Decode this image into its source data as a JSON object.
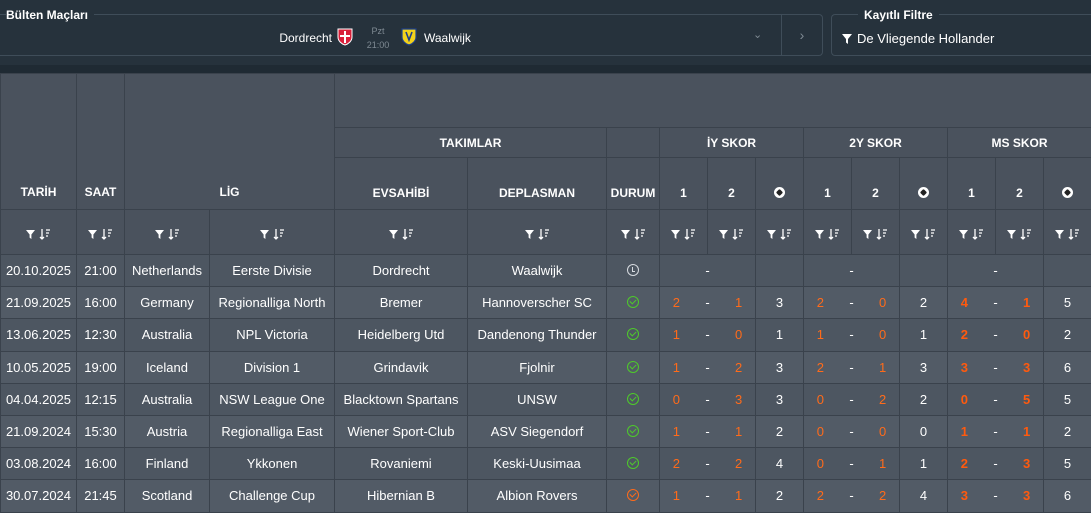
{
  "header": {
    "bulten_label": "Bülten Maçları",
    "filtre_label": "Kayıtlı Filtre",
    "match": {
      "home": "Dordrecht",
      "away": "Waalwijk",
      "day": "Pzt",
      "time": "21:00"
    },
    "filter_value": "De Vliegende Hollander"
  },
  "columns": {
    "tarih": "TARİH",
    "saat": "SAAT",
    "lig": "LİG",
    "takimlar": "TAKIMLAR",
    "evsahibi": "EVSAHİBİ",
    "deplasman": "DEPLASMAN",
    "durum": "DURUM",
    "iy_skor": "İY SKOR",
    "y2_skor": "2Y SKOR",
    "ms_skor": "MS SKOR",
    "one": "1",
    "two": "2"
  },
  "rows": [
    {
      "date": "20.10.2025",
      "time": "21:00",
      "country": "Netherlands",
      "league": "Eerste Divisie",
      "home": "Dordrecht",
      "away": "Waalwijk",
      "status": "pending",
      "iy": [
        "",
        ""
      ],
      "iy_t": "",
      "y2": [
        "",
        ""
      ],
      "y2_t": "",
      "ms": [
        "",
        ""
      ],
      "ms_t": "",
      "iy_dash": "-",
      "y2_dash": "-",
      "ms_dash": "-"
    },
    {
      "date": "21.09.2025",
      "time": "16:00",
      "country": "Germany",
      "league": "Regionalliga North",
      "home": "Bremer",
      "away": "Hannoverscher SC",
      "status": "ok",
      "iy": [
        "2",
        "1"
      ],
      "iy_t": "3",
      "y2": [
        "2",
        "0"
      ],
      "y2_t": "2",
      "ms": [
        "4",
        "1"
      ],
      "ms_t": "5",
      "iy_dash": "-",
      "y2_dash": "-",
      "ms_dash": "-"
    },
    {
      "date": "13.06.2025",
      "time": "12:30",
      "country": "Australia",
      "league": "NPL Victoria",
      "home": "Heidelberg Utd",
      "away": "Dandenong Thunder",
      "status": "ok",
      "iy": [
        "1",
        "0"
      ],
      "iy_t": "1",
      "y2": [
        "1",
        "0"
      ],
      "y2_t": "1",
      "ms": [
        "2",
        "0"
      ],
      "ms_t": "2",
      "iy_dash": "-",
      "y2_dash": "-",
      "ms_dash": "-"
    },
    {
      "date": "10.05.2025",
      "time": "19:00",
      "country": "Iceland",
      "league": "Division 1",
      "home": "Grindavik",
      "away": "Fjolnir",
      "status": "ok",
      "iy": [
        "1",
        "2"
      ],
      "iy_t": "3",
      "y2": [
        "2",
        "1"
      ],
      "y2_t": "3",
      "ms": [
        "3",
        "3"
      ],
      "ms_t": "6",
      "iy_dash": "-",
      "y2_dash": "-",
      "ms_dash": "-"
    },
    {
      "date": "04.04.2025",
      "time": "12:15",
      "country": "Australia",
      "league": "NSW League One",
      "home": "Blacktown Spartans",
      "away": "UNSW",
      "status": "ok",
      "iy": [
        "0",
        "3"
      ],
      "iy_t": "3",
      "y2": [
        "0",
        "2"
      ],
      "y2_t": "2",
      "ms": [
        "0",
        "5"
      ],
      "ms_t": "5",
      "iy_dash": "-",
      "y2_dash": "-",
      "ms_dash": "-"
    },
    {
      "date": "21.09.2024",
      "time": "15:30",
      "country": "Austria",
      "league": "Regionalliga East",
      "home": "Wiener Sport-Club",
      "away": "ASV Siegendorf",
      "status": "ok",
      "iy": [
        "1",
        "1"
      ],
      "iy_t": "2",
      "y2": [
        "0",
        "0"
      ],
      "y2_t": "0",
      "ms": [
        "1",
        "1"
      ],
      "ms_t": "2",
      "iy_dash": "-",
      "y2_dash": "-",
      "ms_dash": "-"
    },
    {
      "date": "03.08.2024",
      "time": "16:00",
      "country": "Finland",
      "league": "Ykkonen",
      "home": "Rovaniemi",
      "away": "Keski-Uusimaa",
      "status": "ok",
      "iy": [
        "2",
        "2"
      ],
      "iy_t": "4",
      "y2": [
        "0",
        "1"
      ],
      "y2_t": "1",
      "ms": [
        "2",
        "3"
      ],
      "ms_t": "5",
      "iy_dash": "-",
      "y2_dash": "-",
      "ms_dash": "-"
    },
    {
      "date": "30.07.2024",
      "time": "21:45",
      "country": "Scotland",
      "league": "Challenge Cup",
      "home": "Hibernian B",
      "away": "Albion Rovers",
      "status": "live",
      "iy": [
        "1",
        "1"
      ],
      "iy_t": "2",
      "y2": [
        "2",
        "2"
      ],
      "y2_t": "4",
      "ms": [
        "3",
        "3"
      ],
      "ms_t": "6",
      "iy_dash": "-",
      "y2_dash": "-",
      "ms_dash": "-"
    }
  ]
}
